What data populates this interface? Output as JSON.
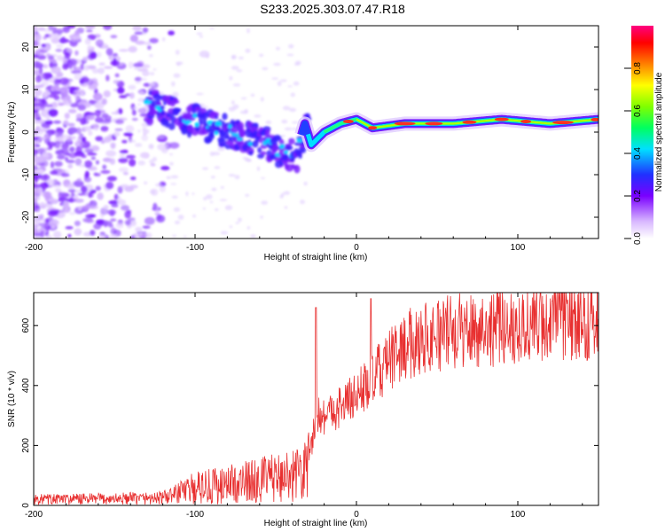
{
  "title": "S233.2025.303.07.47.R18",
  "chart_data": [
    {
      "type": "heatmap",
      "name": "spectrogram",
      "xlabel": "Height of straight line (km)",
      "ylabel": "Frequency (Hz)",
      "xlim": [
        -200,
        150
      ],
      "ylim": [
        -25,
        25
      ],
      "xticks": [
        -200,
        -100,
        0,
        100
      ],
      "yticks": [
        -20,
        -10,
        0,
        10,
        20
      ],
      "colorbar": {
        "label": "Normalized spectral amplitude",
        "range": [
          0,
          1
        ],
        "ticks": [
          0.0,
          0.2,
          0.4,
          0.6,
          0.8
        ]
      },
      "ridge": {
        "description": "dominant frequency trace",
        "x": [
          -130,
          -110,
          -90,
          -70,
          -55,
          -45,
          -38,
          -32,
          -28,
          -20,
          -10,
          0,
          10,
          30,
          60,
          90,
          120,
          150
        ],
        "y": [
          6,
          4,
          1,
          -1,
          -3,
          -5,
          -6,
          2,
          -3,
          0,
          2,
          3,
          1,
          2,
          2,
          3,
          2,
          3
        ]
      }
    },
    {
      "type": "line",
      "name": "snr",
      "xlabel": "Height of straight line (km)",
      "ylabel": "SNR (10 * v/v)",
      "xlim": [
        -200,
        150
      ],
      "ylim": [
        0,
        710
      ],
      "xticks": [
        -200,
        -100,
        0,
        100
      ],
      "yticks": [
        0,
        200,
        400,
        600
      ],
      "color": "#e83030",
      "envelope": {
        "x": [
          -200,
          -150,
          -120,
          -110,
          -100,
          -80,
          -60,
          -40,
          -35,
          -30,
          -25,
          -20,
          -10,
          0,
          10,
          20,
          30,
          40,
          60,
          80,
          100,
          120,
          150
        ],
        "y": [
          20,
          22,
          25,
          40,
          60,
          70,
          85,
          100,
          110,
          130,
          300,
          300,
          330,
          370,
          420,
          480,
          530,
          560,
          580,
          590,
          600,
          610,
          620
        ]
      }
    }
  ]
}
